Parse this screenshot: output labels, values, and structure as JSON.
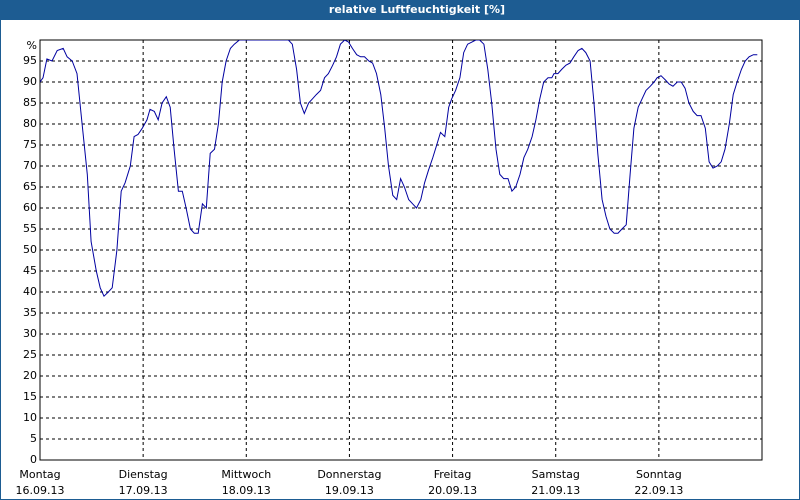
{
  "chart_data": {
    "type": "line",
    "title": "relative Luftfeuchtigkeit [%]",
    "xlim": [
      0,
      168
    ],
    "xticks": [
      {
        "value": 0,
        "label": "Montag",
        "date": "16.09.13"
      },
      {
        "value": 24,
        "label": "Dienstag",
        "date": "17.09.13"
      },
      {
        "value": 48,
        "label": "Mittwoch",
        "date": "18.09.13"
      },
      {
        "value": 72,
        "label": "Donnerstag",
        "date": "19.09.13"
      },
      {
        "value": 96,
        "label": "Freitag",
        "date": "20.09.13"
      },
      {
        "value": 120,
        "label": "Samstag",
        "date": "21.09.13"
      },
      {
        "value": 144,
        "label": "Sonntag",
        "date": "22.09.13"
      }
    ],
    "ylim": [
      0,
      100
    ],
    "yticks": [
      0,
      5,
      10,
      15,
      20,
      25,
      30,
      35,
      40,
      45,
      50,
      55,
      60,
      65,
      70,
      75,
      80,
      85,
      90,
      95,
      {
        "value": 100,
        "label": "%"
      }
    ],
    "grid": true,
    "series": [
      {
        "name": "relative Luftfeuchtigkeit",
        "color": "#0000a0",
        "x": [
          0,
          0.7,
          1.6,
          2.8,
          4.0,
          5.4,
          6.3,
          7.5,
          8.6,
          9.8,
          11.0,
          11.9,
          13.1,
          14.0,
          14.9,
          15.9,
          16.8,
          17.9,
          18.9,
          19.8,
          21.0,
          21.9,
          22.8,
          23.8,
          24.9,
          25.6,
          26.6,
          27.5,
          28.4,
          29.4,
          30.3,
          31.2,
          32.2,
          33.1,
          34.0,
          35.0,
          35.9,
          36.8,
          37.8,
          38.7,
          39.6,
          40.6,
          41.5,
          42.4,
          43.3,
          44.3,
          45.2,
          46.4,
          48,
          57.8,
          58.7,
          59.7,
          60.6,
          61.5,
          62.5,
          63.4,
          64.3,
          65.3,
          66.2,
          67.1,
          68.1,
          69.0,
          69.9,
          70.9,
          71.8,
          72.7,
          73.7,
          74.6,
          75.5,
          76.5,
          77.4,
          78.3,
          79.3,
          80.2,
          81.1,
          82.1,
          83.0,
          83.9,
          84.8,
          85.8,
          86.7,
          87.6,
          88.6,
          89.5,
          90.4,
          91.4,
          92.3,
          93.2,
          94.2,
          95.1,
          95.8,
          96.7,
          97.7,
          98.6,
          99.5,
          100.5,
          101.4,
          102.3,
          103.3,
          104.2,
          105.1,
          106.1,
          107.0,
          107.9,
          108.9,
          109.8,
          110.7,
          111.7,
          112.6,
          113.5,
          114.5,
          115.4,
          116.3,
          117.2,
          118.2,
          119.1,
          119.6,
          120.5,
          121.4,
          122.4,
          123.3,
          124.2,
          125.2,
          126.1,
          127.0,
          128.0,
          128.9,
          129.8,
          130.8,
          131.7,
          132.6,
          133.6,
          134.5,
          135.4,
          136.4,
          137.3,
          138.2,
          139.2,
          140.1,
          141.0,
          142.0,
          142.9,
          143.6,
          144.5,
          145.5,
          146.4,
          147.3,
          148.3,
          149.2,
          150.1,
          151.0,
          152.0,
          152.9,
          153.8,
          154.8,
          155.7,
          156.6,
          157.6,
          158.5,
          159.4,
          160.4,
          161.3,
          162.2,
          163.2,
          164.1,
          165.0,
          166.0,
          166.9
        ],
        "values": [
          90,
          91,
          95.5,
          95,
          97.5,
          98,
          96,
          95,
          92,
          80,
          68,
          52,
          45,
          41,
          39,
          40,
          41,
          50,
          64,
          66,
          70,
          77,
          77.5,
          79,
          81,
          83.5,
          83,
          81,
          85,
          86.5,
          84,
          74,
          64,
          64,
          60,
          55,
          54,
          54,
          61,
          60,
          73,
          74,
          80,
          90,
          95,
          98,
          99,
          100,
          100,
          100,
          99,
          93,
          85,
          82.5,
          85,
          86,
          87,
          88,
          91,
          92,
          94,
          96,
          99,
          100,
          99.5,
          98,
          96.5,
          96,
          96,
          95,
          94.5,
          92,
          87,
          79,
          70,
          63,
          62,
          67,
          65,
          62,
          61,
          60,
          62,
          66,
          69,
          72,
          75,
          78,
          77,
          84,
          86,
          88,
          91,
          97,
          99,
          99.5,
          100,
          100,
          99,
          93,
          85,
          74,
          68,
          67,
          67,
          64,
          65,
          68,
          72,
          74,
          77,
          81,
          86,
          90,
          91,
          91,
          92,
          92,
          93,
          94,
          94.5,
          96,
          97.5,
          98,
          97,
          95,
          85,
          73,
          62,
          58,
          55,
          54,
          54,
          55,
          56,
          68,
          79,
          84,
          86,
          88,
          89,
          90,
          91,
          91.5,
          90.5,
          89.5,
          89,
          90,
          90,
          88.5,
          85,
          83,
          82,
          82,
          79,
          71,
          69.5,
          70,
          71,
          74,
          80,
          87,
          90,
          93,
          95,
          96,
          96.5,
          96.5
        ]
      }
    ]
  }
}
